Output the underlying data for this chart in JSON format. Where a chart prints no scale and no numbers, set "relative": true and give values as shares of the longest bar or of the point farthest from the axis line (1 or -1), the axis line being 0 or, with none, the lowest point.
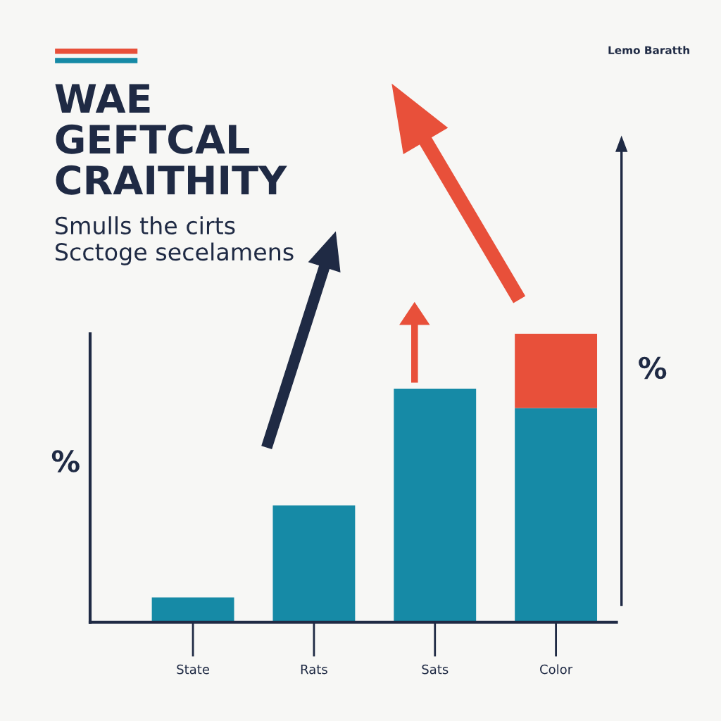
{
  "chart_data": {
    "type": "bar",
    "title": "WAE\nGEFTCAL\nCRAITHITY",
    "subtitle": "Smulls the cirts\nScctoge secelamens",
    "ylabel": "%",
    "annotations": [
      "Lemo Baratth",
      "%"
    ],
    "categories": [
      "State",
      "Rats",
      "Sats",
      "Color"
    ],
    "stacked": true,
    "relative": true,
    "series": [
      {
        "color": "#168aa6",
        "values": [
          0.086,
          0.405,
          0.81,
          0.743
        ]
      },
      {
        "color": "#e8503a",
        "values": [
          0,
          0,
          0,
          0.257
        ]
      }
    ],
    "grid": false,
    "legend": false
  }
}
